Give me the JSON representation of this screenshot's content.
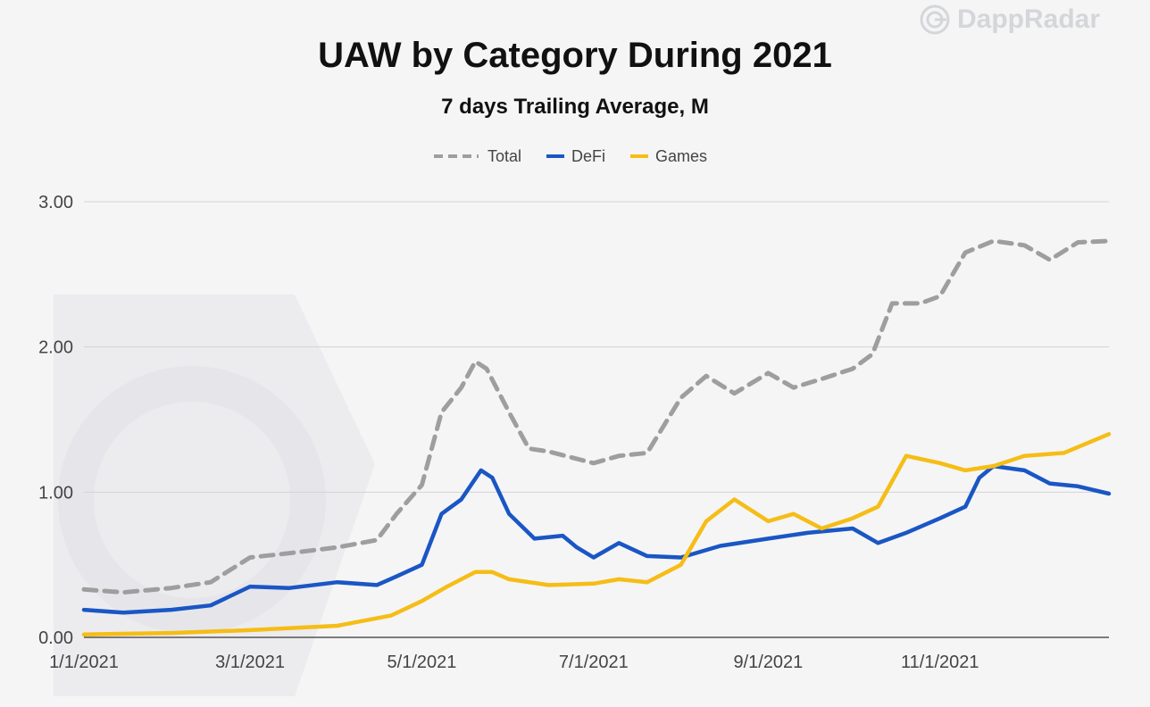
{
  "brand": {
    "name": "DappRadar"
  },
  "chart_data": {
    "type": "line",
    "title": "UAW by Category During 2021",
    "subtitle": "7 days Trailing Average, M",
    "xlabel": "",
    "ylabel": "",
    "ylim": [
      0,
      3
    ],
    "yticks": [
      0,
      1,
      2,
      3
    ],
    "ytick_labels": [
      "0.00",
      "1.00",
      "2.00",
      "3.00"
    ],
    "x_range": [
      "2021-01-01",
      "2021-12-31"
    ],
    "xticks": [
      "2021-01-01",
      "2021-03-01",
      "2021-05-01",
      "2021-07-01",
      "2021-09-01",
      "2021-11-01"
    ],
    "xtick_labels": [
      "1/1/2021",
      "3/1/2021",
      "5/1/2021",
      "7/1/2021",
      "9/1/2021",
      "11/1/2021"
    ],
    "grid": true,
    "legend_position": "top-center",
    "series": [
      {
        "name": "Total",
        "color": "#9e9e9e",
        "style": "dashed",
        "points": [
          [
            "2021-01-01",
            0.33
          ],
          [
            "2021-01-15",
            0.31
          ],
          [
            "2021-02-01",
            0.34
          ],
          [
            "2021-02-15",
            0.38
          ],
          [
            "2021-03-01",
            0.55
          ],
          [
            "2021-03-15",
            0.58
          ],
          [
            "2021-04-01",
            0.62
          ],
          [
            "2021-04-15",
            0.67
          ],
          [
            "2021-04-22",
            0.85
          ],
          [
            "2021-05-01",
            1.05
          ],
          [
            "2021-05-08",
            1.55
          ],
          [
            "2021-05-15",
            1.72
          ],
          [
            "2021-05-20",
            1.9
          ],
          [
            "2021-05-24",
            1.85
          ],
          [
            "2021-06-01",
            1.55
          ],
          [
            "2021-06-08",
            1.3
          ],
          [
            "2021-06-15",
            1.28
          ],
          [
            "2021-07-01",
            1.2
          ],
          [
            "2021-07-10",
            1.25
          ],
          [
            "2021-07-20",
            1.27
          ],
          [
            "2021-08-01",
            1.65
          ],
          [
            "2021-08-10",
            1.8
          ],
          [
            "2021-08-20",
            1.68
          ],
          [
            "2021-09-01",
            1.82
          ],
          [
            "2021-09-10",
            1.72
          ],
          [
            "2021-09-20",
            1.78
          ],
          [
            "2021-10-01",
            1.85
          ],
          [
            "2021-10-08",
            1.95
          ],
          [
            "2021-10-15",
            2.3
          ],
          [
            "2021-10-25",
            2.3
          ],
          [
            "2021-11-01",
            2.35
          ],
          [
            "2021-11-10",
            2.65
          ],
          [
            "2021-11-20",
            2.73
          ],
          [
            "2021-12-01",
            2.7
          ],
          [
            "2021-12-10",
            2.6
          ],
          [
            "2021-12-20",
            2.72
          ],
          [
            "2021-12-31",
            2.73
          ]
        ]
      },
      {
        "name": "DeFi",
        "color": "#1a56c4",
        "style": "solid",
        "points": [
          [
            "2021-01-01",
            0.19
          ],
          [
            "2021-01-15",
            0.17
          ],
          [
            "2021-02-01",
            0.19
          ],
          [
            "2021-02-15",
            0.22
          ],
          [
            "2021-03-01",
            0.35
          ],
          [
            "2021-03-15",
            0.34
          ],
          [
            "2021-04-01",
            0.38
          ],
          [
            "2021-04-15",
            0.36
          ],
          [
            "2021-04-22",
            0.42
          ],
          [
            "2021-05-01",
            0.5
          ],
          [
            "2021-05-08",
            0.85
          ],
          [
            "2021-05-15",
            0.95
          ],
          [
            "2021-05-22",
            1.15
          ],
          [
            "2021-05-26",
            1.1
          ],
          [
            "2021-06-01",
            0.85
          ],
          [
            "2021-06-10",
            0.68
          ],
          [
            "2021-06-20",
            0.7
          ],
          [
            "2021-06-25",
            0.62
          ],
          [
            "2021-07-01",
            0.55
          ],
          [
            "2021-07-10",
            0.65
          ],
          [
            "2021-07-20",
            0.56
          ],
          [
            "2021-08-01",
            0.55
          ],
          [
            "2021-08-15",
            0.63
          ],
          [
            "2021-09-01",
            0.68
          ],
          [
            "2021-09-15",
            0.72
          ],
          [
            "2021-10-01",
            0.75
          ],
          [
            "2021-10-10",
            0.65
          ],
          [
            "2021-10-20",
            0.72
          ],
          [
            "2021-11-01",
            0.82
          ],
          [
            "2021-11-10",
            0.9
          ],
          [
            "2021-11-15",
            1.1
          ],
          [
            "2021-11-20",
            1.18
          ],
          [
            "2021-12-01",
            1.15
          ],
          [
            "2021-12-10",
            1.06
          ],
          [
            "2021-12-20",
            1.04
          ],
          [
            "2021-12-31",
            0.99
          ]
        ]
      },
      {
        "name": "Games",
        "color": "#f5bd16",
        "style": "solid",
        "points": [
          [
            "2021-01-01",
            0.02
          ],
          [
            "2021-02-01",
            0.03
          ],
          [
            "2021-03-01",
            0.05
          ],
          [
            "2021-04-01",
            0.08
          ],
          [
            "2021-04-20",
            0.15
          ],
          [
            "2021-05-01",
            0.25
          ],
          [
            "2021-05-10",
            0.35
          ],
          [
            "2021-05-20",
            0.45
          ],
          [
            "2021-05-26",
            0.45
          ],
          [
            "2021-06-01",
            0.4
          ],
          [
            "2021-06-15",
            0.36
          ],
          [
            "2021-07-01",
            0.37
          ],
          [
            "2021-07-10",
            0.4
          ],
          [
            "2021-07-20",
            0.38
          ],
          [
            "2021-08-01",
            0.5
          ],
          [
            "2021-08-10",
            0.8
          ],
          [
            "2021-08-20",
            0.95
          ],
          [
            "2021-09-01",
            0.8
          ],
          [
            "2021-09-10",
            0.85
          ],
          [
            "2021-09-20",
            0.75
          ],
          [
            "2021-10-01",
            0.82
          ],
          [
            "2021-10-10",
            0.9
          ],
          [
            "2021-10-20",
            1.25
          ],
          [
            "2021-11-01",
            1.2
          ],
          [
            "2021-11-10",
            1.15
          ],
          [
            "2021-11-20",
            1.18
          ],
          [
            "2021-12-01",
            1.25
          ],
          [
            "2021-12-15",
            1.27
          ],
          [
            "2021-12-31",
            1.4
          ]
        ]
      }
    ]
  }
}
